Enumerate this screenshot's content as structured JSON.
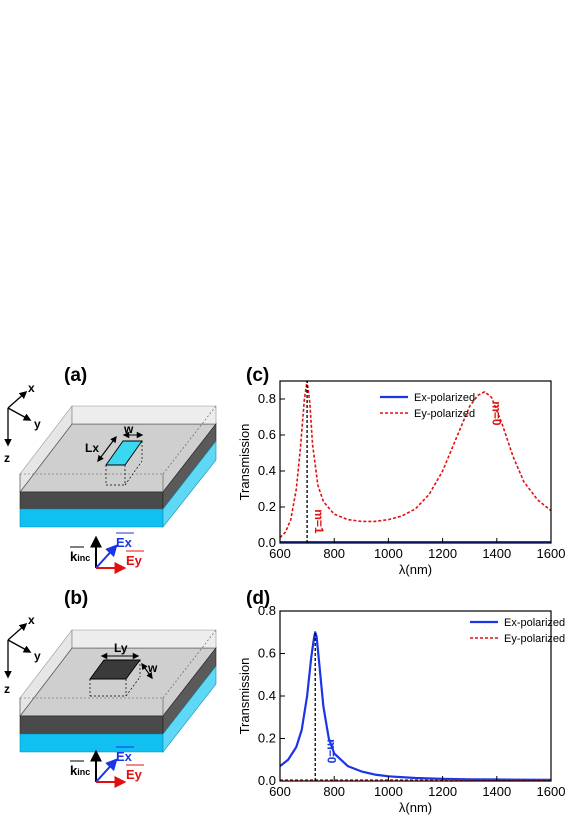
{
  "panels": {
    "a": {
      "label": "(a)",
      "axis_x": "x",
      "axis_y": "y",
      "axis_z": "z",
      "dim_len": "Lx",
      "dim_w": "w",
      "k": "k",
      "k_sub": "inc",
      "ex": "Ex",
      "ey": "Ey"
    },
    "b": {
      "label": "(b)",
      "axis_x": "x",
      "axis_y": "y",
      "axis_z": "z",
      "dim_len": "Ly",
      "dim_w": "w",
      "k": "k",
      "k_sub": "inc",
      "ex": "Ex",
      "ey": "Ey"
    },
    "c": {
      "label": "(c)",
      "mode_1": "m=1",
      "mode_0": "m=0"
    },
    "d": {
      "label": "(d)",
      "mode_0": "m=0"
    }
  },
  "colors": {
    "ex": "#1a35e6",
    "ey": "#e01010",
    "slab_top": "#c8c8c8",
    "slab_dark": "#4a4a4a",
    "substrate": "#10c0f0",
    "box_fill": "#39d8f0"
  },
  "chart_data": [
    {
      "type": "line",
      "panel": "c",
      "xlabel": "λ(nm)",
      "ylabel": "Transmission",
      "xlim": [
        600,
        1600
      ],
      "ylim": [
        0,
        0.9
      ],
      "xticks": [
        600,
        800,
        1000,
        1200,
        1400,
        1600
      ],
      "yticks": [
        0.0,
        0.2,
        0.4,
        0.6,
        0.8
      ],
      "legend_position": "top-center",
      "series": [
        {
          "name": "Ex-polarized",
          "style": "solid",
          "color": "#1a35e6",
          "x": [
            600,
            700,
            800,
            900,
            1000,
            1100,
            1200,
            1300,
            1400,
            1500,
            1600
          ],
          "y": [
            0.005,
            0.005,
            0.005,
            0.005,
            0.005,
            0.005,
            0.005,
            0.005,
            0.005,
            0.005,
            0.005
          ]
        },
        {
          "name": "Ey-polarized",
          "style": "dashed",
          "color": "#e01010",
          "x": [
            600,
            620,
            640,
            660,
            675,
            690,
            700,
            710,
            720,
            740,
            760,
            800,
            850,
            900,
            950,
            1000,
            1050,
            1100,
            1150,
            1200,
            1250,
            1300,
            1330,
            1355,
            1380,
            1420,
            1460,
            1500,
            1550,
            1600
          ],
          "y": [
            0.03,
            0.06,
            0.13,
            0.3,
            0.52,
            0.8,
            0.9,
            0.78,
            0.55,
            0.32,
            0.23,
            0.16,
            0.13,
            0.12,
            0.12,
            0.13,
            0.15,
            0.19,
            0.27,
            0.4,
            0.58,
            0.76,
            0.82,
            0.84,
            0.81,
            0.66,
            0.48,
            0.34,
            0.24,
            0.18
          ]
        }
      ],
      "markers": [
        {
          "x": 700,
          "style": "dotted-vertical"
        }
      ]
    },
    {
      "type": "line",
      "panel": "d",
      "xlabel": "λ(nm)",
      "ylabel": "Transmission",
      "xlim": [
        600,
        1600
      ],
      "ylim": [
        0,
        0.8
      ],
      "xticks": [
        600,
        800,
        1000,
        1200,
        1400,
        1600
      ],
      "yticks": [
        0.0,
        0.2,
        0.4,
        0.6,
        0.8
      ],
      "legend_position": "top-right",
      "series": [
        {
          "name": "Ex-polarized",
          "style": "solid",
          "color": "#1a35e6",
          "x": [
            600,
            630,
            660,
            680,
            700,
            715,
            725,
            730,
            735,
            745,
            760,
            780,
            800,
            850,
            900,
            950,
            1000,
            1100,
            1200,
            1300,
            1400,
            1500,
            1600
          ],
          "y": [
            0.07,
            0.1,
            0.16,
            0.24,
            0.4,
            0.58,
            0.67,
            0.7,
            0.68,
            0.55,
            0.35,
            0.2,
            0.13,
            0.07,
            0.045,
            0.03,
            0.022,
            0.014,
            0.01,
            0.008,
            0.007,
            0.006,
            0.005
          ]
        },
        {
          "name": "Ey-polarized",
          "style": "dashed",
          "color": "#e01010",
          "x": [
            600,
            800,
            1000,
            1200,
            1400,
            1600
          ],
          "y": [
            0.004,
            0.004,
            0.004,
            0.004,
            0.004,
            0.004
          ]
        }
      ],
      "markers": [
        {
          "x": 730,
          "style": "dotted-vertical"
        }
      ]
    }
  ]
}
